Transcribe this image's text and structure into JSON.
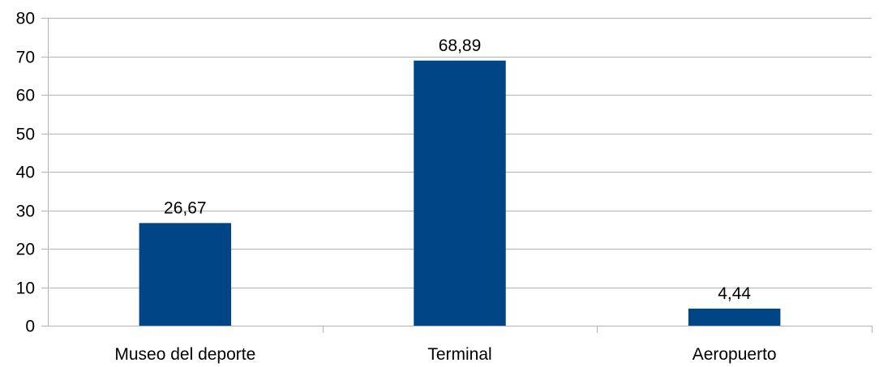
{
  "chart_data": {
    "type": "bar",
    "title": "",
    "xlabel": "",
    "ylabel": "",
    "categories": [
      "Museo del deporte",
      "Terminal",
      "Aeropuerto"
    ],
    "values": [
      26.67,
      68.89,
      4.44
    ],
    "data_labels": [
      "26,67",
      "68,89",
      "4,44"
    ],
    "ylim": [
      0,
      80
    ],
    "yticks": [
      0,
      10,
      20,
      30,
      40,
      50,
      60,
      70,
      80
    ],
    "grid": true,
    "legend": "none",
    "bar_color": "#004586"
  }
}
